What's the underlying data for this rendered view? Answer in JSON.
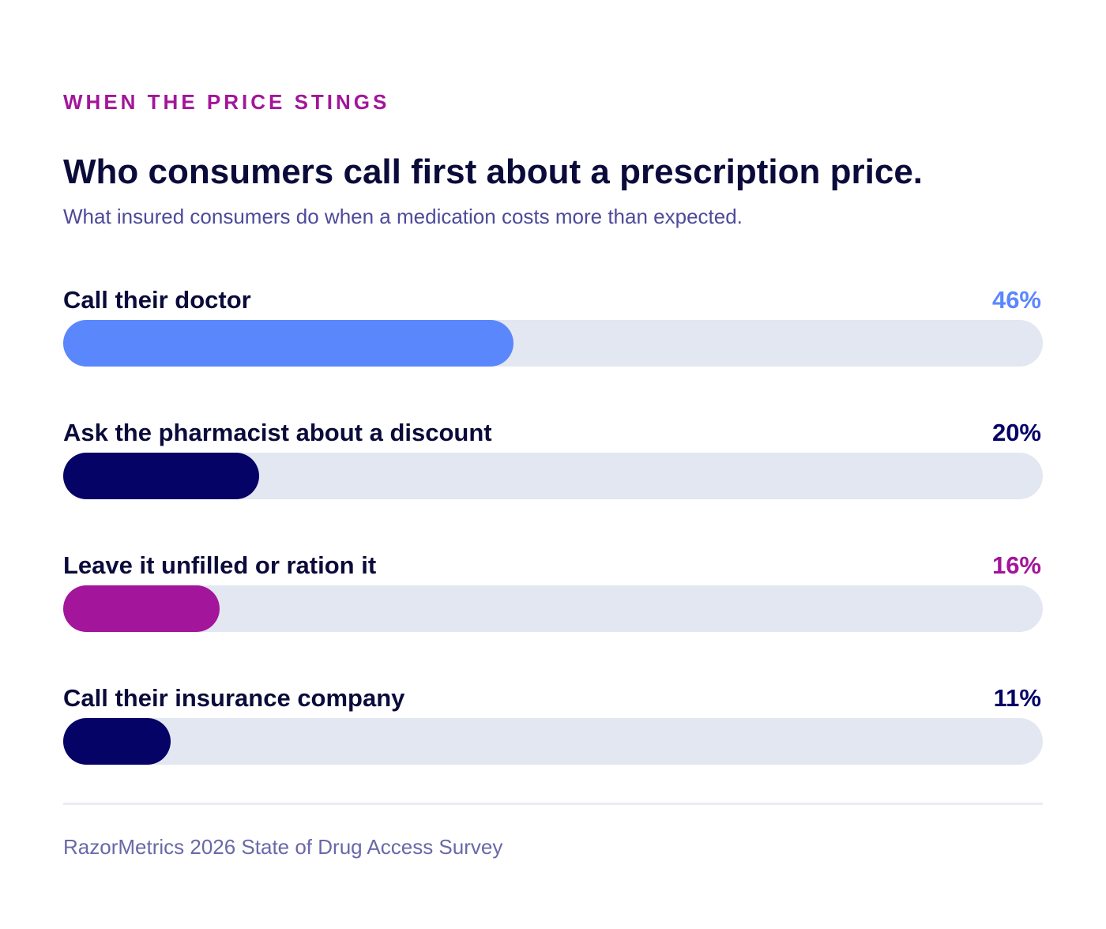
{
  "eyebrow": "WHEN THE PRICE STINGS",
  "title": "Who consumers call first about a prescription price.",
  "subtitle": "What insured consumers do when a medication costs more than expected.",
  "source": "RazorMetrics 2026 State of Drug Access Survey",
  "colors": {
    "blue": "#5b87fd",
    "navy": "#050366",
    "magenta": "#a3159a",
    "track": "#e3e7f1"
  },
  "chart_data": {
    "type": "bar",
    "orientation": "horizontal",
    "categories": [
      "Call their doctor",
      "Ask the pharmacist about a discount",
      "Leave it unfilled or ration it",
      "Call their insurance company"
    ],
    "values": [
      46,
      20,
      16,
      11
    ],
    "value_labels": [
      "46%",
      "20%",
      "16%",
      "11%"
    ],
    "bar_colors": [
      "#5b87fd",
      "#050366",
      "#a3159a",
      "#050366"
    ],
    "label_colors": [
      "#5b87fd",
      "#050366",
      "#a3159a",
      "#050366"
    ],
    "xlim": [
      0,
      100
    ],
    "title": "Who consumers call first about a prescription price.",
    "xlabel": "",
    "ylabel": "",
    "grid": false,
    "legend": "none"
  }
}
